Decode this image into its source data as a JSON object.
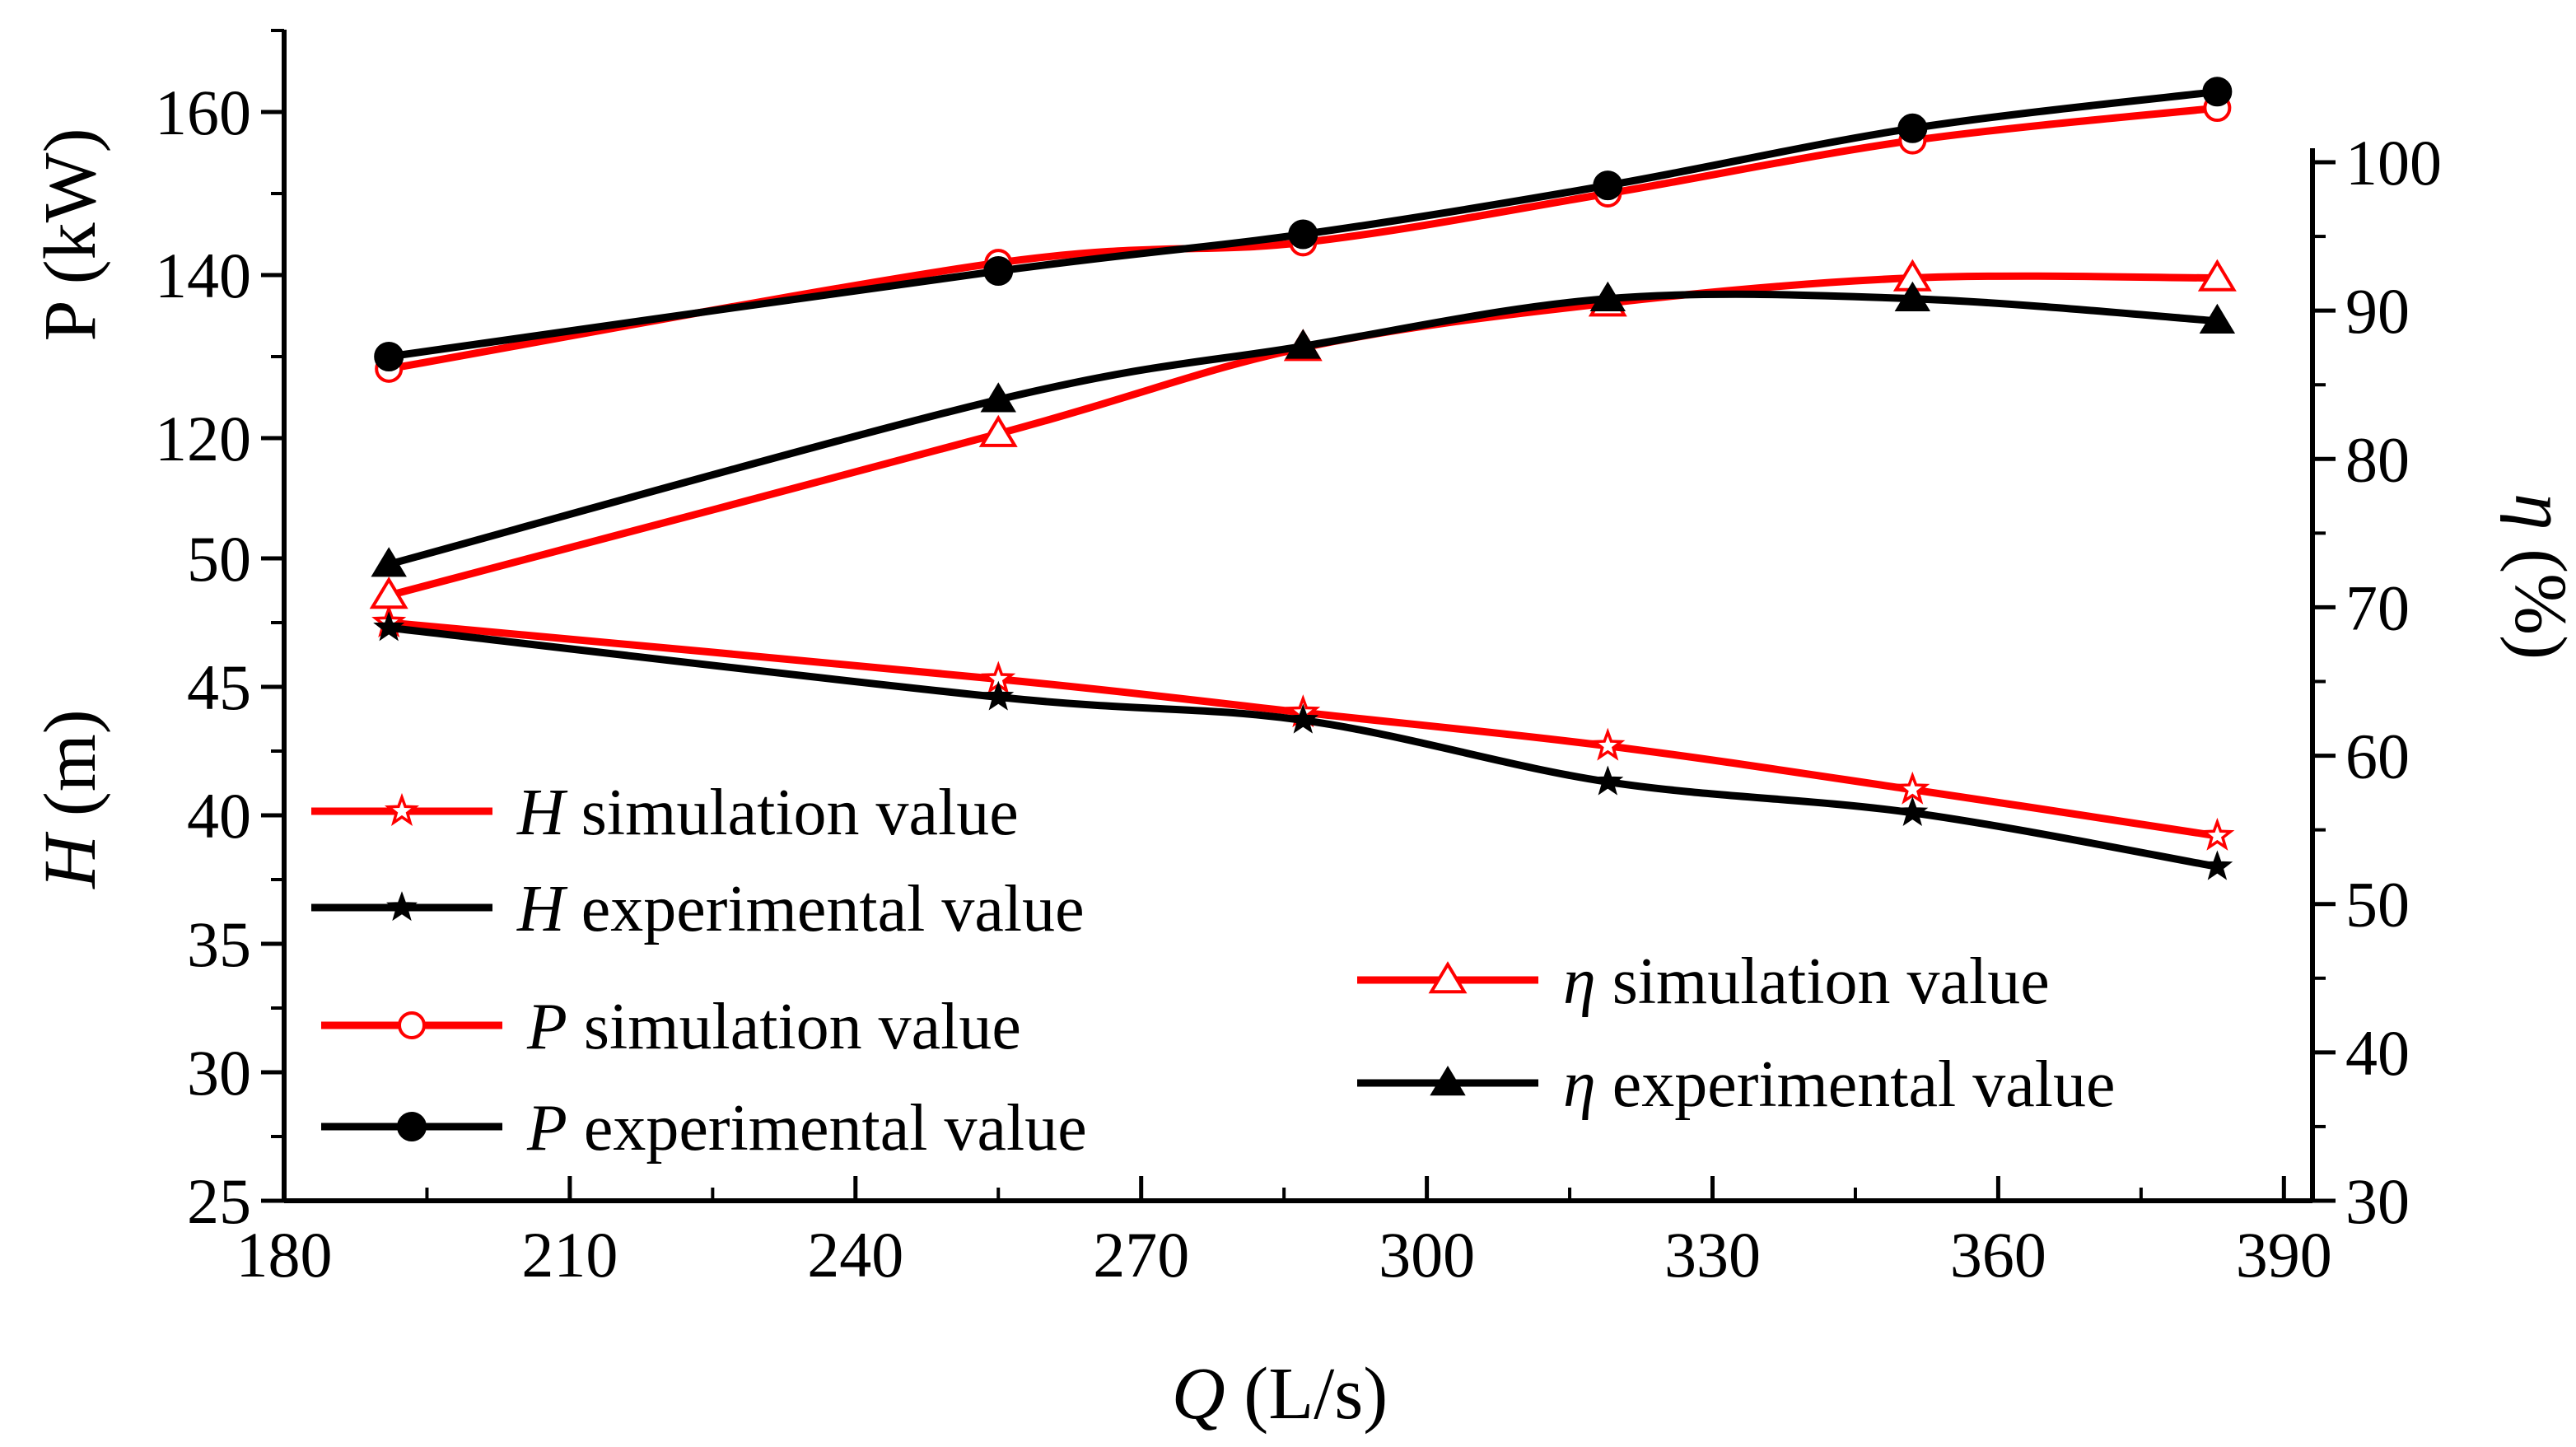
{
  "chart_data": {
    "type": "line",
    "x": [
      191,
      255,
      287,
      319,
      351,
      383
    ],
    "xlabel": {
      "var": "Q",
      "unit": " (L/s)"
    },
    "x_ticks": [
      180,
      210,
      240,
      270,
      300,
      330,
      360,
      390
    ],
    "xlim": [
      180,
      393
    ],
    "axes": {
      "P": {
        "label": "P (kW)",
        "range": [
          115,
          172
        ],
        "ticks": [
          120,
          140,
          160
        ]
      },
      "H": {
        "label_var": "H",
        "label_unit": " (m)",
        "range": [
          25,
          51.5
        ],
        "ticks": [
          25,
          30,
          35,
          40,
          45,
          50
        ]
      },
      "eta": {
        "label_var": "η",
        "label_unit": " (%)",
        "range": [
          30,
          103
        ],
        "ticks": [
          30,
          40,
          50,
          60,
          70,
          80,
          90,
          100
        ]
      }
    },
    "series": [
      {
        "name": "H simulation value",
        "var": "H",
        "suffix": " simulation value",
        "axis": "H",
        "color": "#ff0000",
        "marker": "star-open",
        "values": [
          47.5,
          45.3,
          44.0,
          42.7,
          41.0,
          39.2
        ]
      },
      {
        "name": "H experimental value",
        "var": "H",
        "suffix": " experimental value",
        "axis": "H",
        "color": "#000000",
        "marker": "star-filled",
        "values": [
          47.3,
          44.6,
          43.7,
          41.3,
          40.1,
          38.0
        ]
      },
      {
        "name": "P simulation value",
        "var": "P",
        "suffix": "  simulation value",
        "axis": "P",
        "color": "#ff0000",
        "marker": "circle-open",
        "values": [
          128.5,
          141.5,
          144.0,
          150.0,
          156.5,
          160.5
        ]
      },
      {
        "name": "P experimental value",
        "var": "P",
        "suffix": " experimental value",
        "axis": "P",
        "color": "#000000",
        "marker": "circle-filled",
        "values": [
          130.0,
          140.5,
          145.0,
          151.0,
          158.0,
          162.5
        ]
      },
      {
        "name": "η simulation value",
        "var": "η",
        "suffix": " simulation value",
        "axis": "eta",
        "color": "#ff0000",
        "marker": "triangle-open",
        "values": [
          70.8,
          81.7,
          87.5,
          90.5,
          92.2,
          92.2
        ]
      },
      {
        "name": "η experimental value",
        "var": "η",
        "suffix": " experimental value",
        "axis": "eta",
        "color": "#000000",
        "marker": "triangle-filled",
        "values": [
          72.9,
          84.0,
          87.6,
          90.8,
          90.8,
          89.3
        ]
      }
    ]
  }
}
